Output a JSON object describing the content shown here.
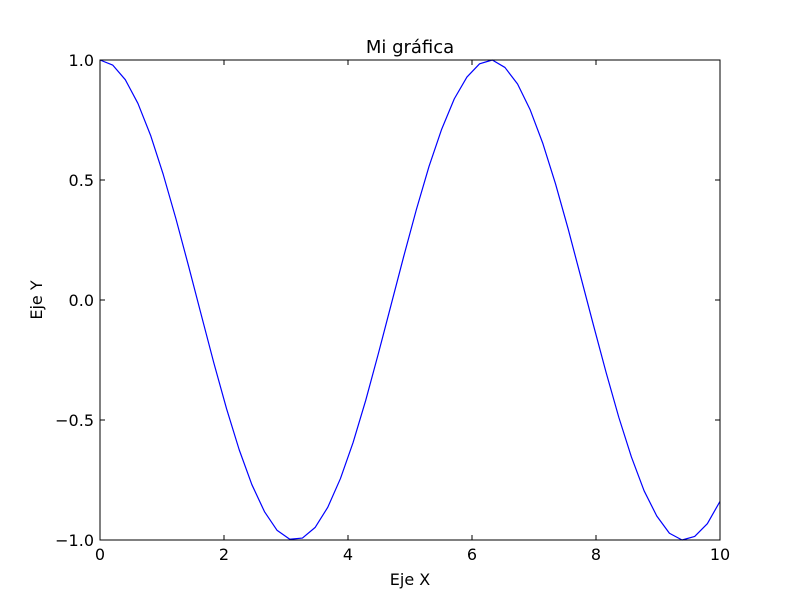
{
  "chart_data": {
    "type": "line",
    "title": "Mi gráfica",
    "xlabel": "Eje X",
    "ylabel": "Eje Y",
    "xlim": [
      0,
      10
    ],
    "ylim": [
      -1.0,
      1.0
    ],
    "grid": false,
    "x_ticks": [
      0,
      2,
      4,
      6,
      8,
      10
    ],
    "x_tick_labels": [
      "0",
      "2",
      "4",
      "6",
      "8",
      "10"
    ],
    "y_ticks": [
      1.0,
      0.5,
      0.0,
      -0.5,
      -1.0
    ],
    "y_tick_labels": [
      "1.0",
      "0.5",
      "0.0",
      "−0.5",
      "−1.0"
    ],
    "series": [
      {
        "color": "#0000ff",
        "x": [
          0.0,
          0.204,
          0.408,
          0.612,
          0.816,
          1.02,
          1.224,
          1.429,
          1.633,
          1.837,
          2.041,
          2.245,
          2.449,
          2.653,
          2.857,
          3.061,
          3.265,
          3.469,
          3.673,
          3.878,
          4.082,
          4.286,
          4.49,
          4.694,
          4.898,
          5.102,
          5.306,
          5.51,
          5.714,
          5.918,
          6.122,
          6.327,
          6.531,
          6.735,
          6.939,
          7.143,
          7.347,
          7.551,
          7.755,
          7.959,
          8.163,
          8.367,
          8.571,
          8.776,
          8.98,
          9.184,
          9.388,
          9.592,
          9.796,
          10.0
        ],
        "y": [
          1.0,
          0.979,
          0.918,
          0.819,
          0.686,
          0.523,
          0.339,
          0.141,
          -0.062,
          -0.263,
          -0.453,
          -0.624,
          -0.769,
          -0.882,
          -0.96,
          -0.997,
          -0.992,
          -0.948,
          -0.864,
          -0.744,
          -0.594,
          -0.418,
          -0.223,
          -0.021,
          0.181,
          0.376,
          0.556,
          0.711,
          0.838,
          0.929,
          0.984,
          1.0,
          0.969,
          0.9,
          0.792,
          0.652,
          0.484,
          0.296,
          0.096,
          -0.105,
          -0.302,
          -0.488,
          -0.654,
          -0.795,
          -0.9,
          -0.972,
          -1.0,
          -0.985,
          -0.932,
          -0.839
        ]
      }
    ]
  }
}
